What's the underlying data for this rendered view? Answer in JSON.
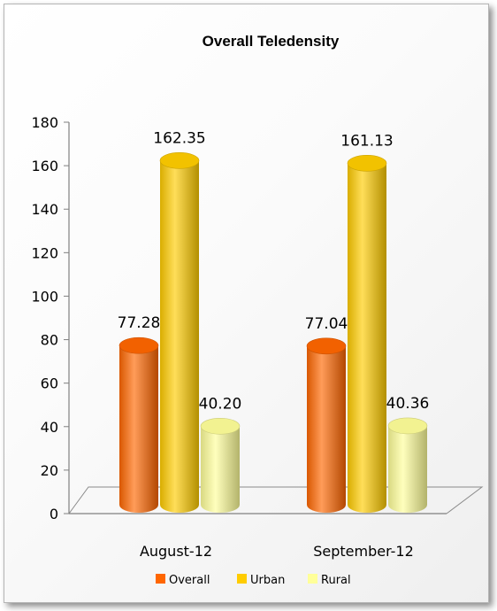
{
  "chart_data": {
    "type": "bar",
    "title": "Overall Teledensity",
    "categories": [
      "August-12",
      "September-12"
    ],
    "series": [
      {
        "name": "Overall",
        "values": [
          77.28,
          77.04
        ],
        "labels": [
          "77.28",
          "77.04"
        ]
      },
      {
        "name": "Urban",
        "values": [
          162.35,
          161.13
        ],
        "labels": [
          "162.35",
          "161.13"
        ]
      },
      {
        "name": "Rural",
        "values": [
          40.2,
          40.36
        ],
        "labels": [
          "40.20",
          "40.36"
        ]
      }
    ],
    "ylim": [
      0,
      180
    ],
    "yticks": [
      0,
      20,
      40,
      60,
      80,
      100,
      120,
      140,
      160,
      180
    ],
    "xlabel": "",
    "ylabel": "",
    "grid": false,
    "legend": "bottom",
    "style": "3d-cylinder"
  },
  "colors": {
    "Overall": "#ff6600",
    "Urban": "#ffcc00",
    "Rural": "#ffff99"
  }
}
